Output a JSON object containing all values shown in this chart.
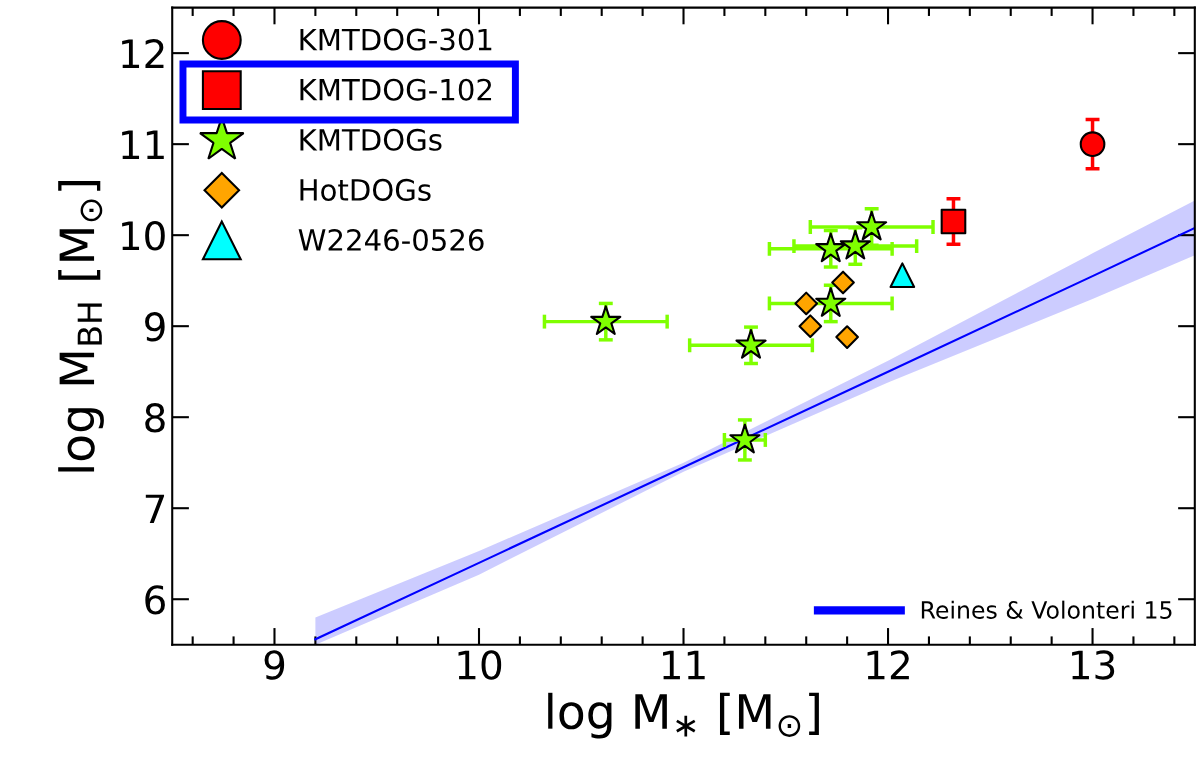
{
  "chart_data": {
    "type": "scatter",
    "xlabel": "log M$_{∗}$ [M$_{⊙}$]",
    "ylabel": "log M$_{BH}$ [M$_{⊙}$]",
    "xlim": [
      8.5,
      13.5
    ],
    "ylim": [
      5.5,
      12.5
    ],
    "xticks": [
      9,
      10,
      11,
      12,
      13
    ],
    "yticks": [
      6,
      7,
      8,
      9,
      10,
      11,
      12
    ],
    "grid": false,
    "legend": "top left",
    "series": [
      {
        "name": "KMTDOG-301",
        "marker": "circle",
        "color": "#ff0000",
        "x": [
          13.0
        ],
        "values": [
          11.0
        ],
        "errors": [
          0.27
        ]
      },
      {
        "name": "KMTDOG-102",
        "marker": "square",
        "color": "#ff0000",
        "x": [
          12.32
        ],
        "values": [
          10.15
        ],
        "errors": [
          0.25
        ]
      },
      {
        "name": "KMTDOGs",
        "marker": "star",
        "color": "#7fff00",
        "x": [
          10.62,
          11.33,
          11.3,
          11.72,
          11.72,
          11.84,
          11.92
        ],
        "values": [
          9.05,
          8.79,
          7.75,
          9.25,
          9.85,
          9.88,
          10.09
        ],
        "xerrors": [
          0.3,
          0.3,
          0.1,
          0.3,
          0.3,
          0.3,
          0.3
        ],
        "errors": [
          0.2,
          0.2,
          0.22,
          0.2,
          0.2,
          0.2,
          0.2
        ]
      },
      {
        "name": "HotDOGs",
        "marker": "diamond",
        "color": "#ffa500",
        "x": [
          11.6,
          11.62,
          11.78,
          11.8
        ],
        "values": [
          9.25,
          9.0,
          9.48,
          8.88
        ]
      },
      {
        "name": "W2246-0526",
        "marker": "triangle",
        "color": "#00ffff",
        "x": [
          12.07
        ],
        "values": [
          9.56
        ]
      },
      {
        "name": "Reines & Volonteri 15",
        "type": "line",
        "color": "#0000ff",
        "x": [
          9.2,
          10,
          11,
          12,
          13,
          13.5
        ],
        "values": [
          5.56,
          6.4,
          7.45,
          8.5,
          9.55,
          10.08
        ],
        "lower": [
          5.5,
          6.27,
          7.4,
          8.38,
          9.3,
          9.78
        ],
        "upper": [
          5.8,
          6.53,
          7.5,
          8.62,
          9.8,
          10.38
        ]
      }
    ]
  }
}
